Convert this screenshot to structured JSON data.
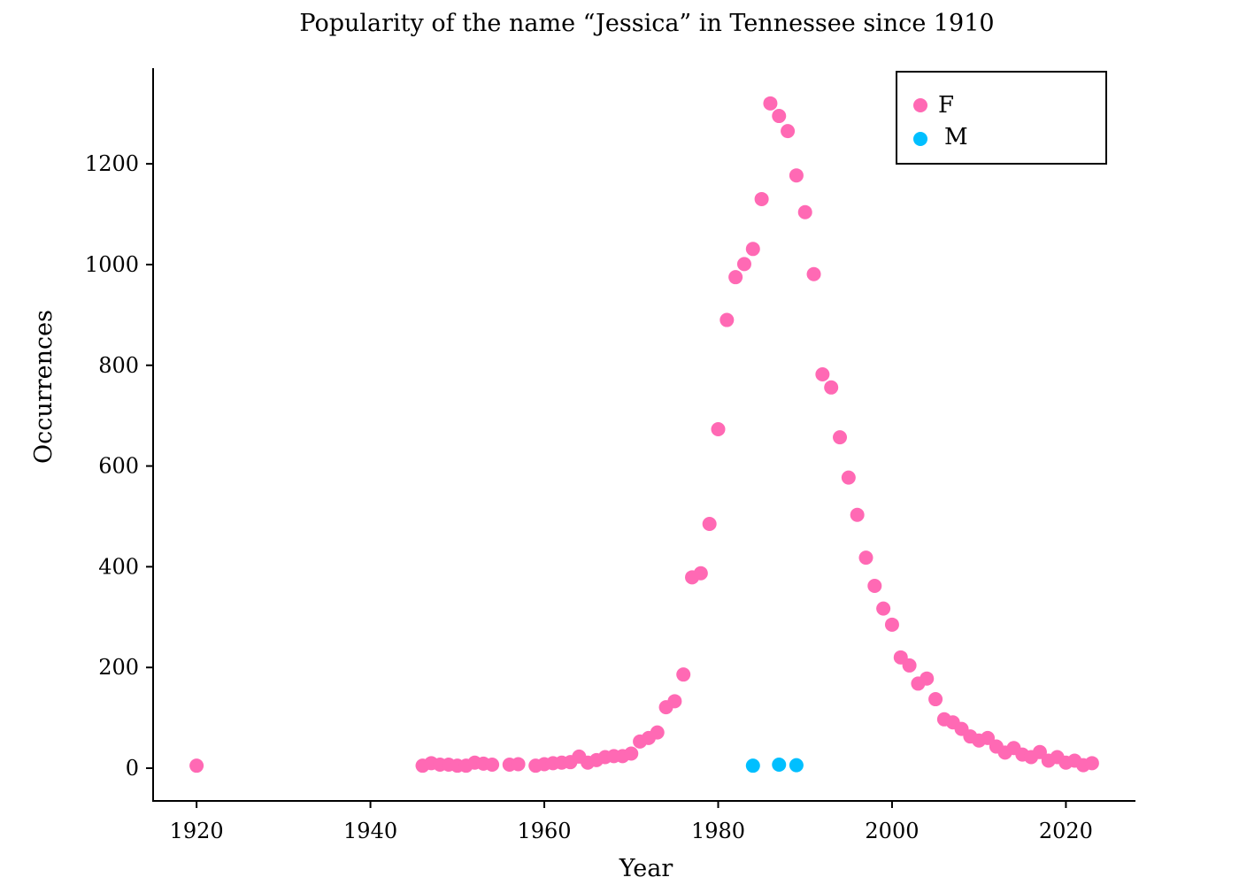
{
  "chart_data": {
    "type": "scatter",
    "title": "Popularity of the name “Jessica” in Tennessee since 1910",
    "xlabel": "Year",
    "ylabel": "Occurrences",
    "xlim": [
      1915,
      2028
    ],
    "ylim": [
      -65,
      1390
    ],
    "x_ticks": [
      1920,
      1940,
      1960,
      1980,
      2000,
      2020
    ],
    "y_ticks": [
      0,
      200,
      400,
      600,
      800,
      1000,
      1200
    ],
    "grid": false,
    "legend_position": "top-right",
    "series": [
      {
        "name": "F",
        "color": "#ff69b4",
        "points": [
          [
            1920,
            5
          ],
          [
            1946,
            5
          ],
          [
            1947,
            10
          ],
          [
            1948,
            7
          ],
          [
            1949,
            7
          ],
          [
            1950,
            5
          ],
          [
            1951,
            5
          ],
          [
            1952,
            11
          ],
          [
            1953,
            9
          ],
          [
            1954,
            7
          ],
          [
            1956,
            7
          ],
          [
            1957,
            8
          ],
          [
            1959,
            5
          ],
          [
            1960,
            8
          ],
          [
            1961,
            10
          ],
          [
            1962,
            11
          ],
          [
            1963,
            12
          ],
          [
            1964,
            23
          ],
          [
            1965,
            11
          ],
          [
            1966,
            16
          ],
          [
            1967,
            22
          ],
          [
            1968,
            24
          ],
          [
            1969,
            24
          ],
          [
            1970,
            29
          ],
          [
            1971,
            53
          ],
          [
            1972,
            60
          ],
          [
            1973,
            71
          ],
          [
            1974,
            121
          ],
          [
            1975,
            133
          ],
          [
            1976,
            186
          ],
          [
            1977,
            379
          ],
          [
            1978,
            387
          ],
          [
            1979,
            485
          ],
          [
            1980,
            673
          ],
          [
            1981,
            890
          ],
          [
            1982,
            975
          ],
          [
            1983,
            1001
          ],
          [
            1984,
            1031
          ],
          [
            1985,
            1130
          ],
          [
            1986,
            1320
          ],
          [
            1987,
            1295
          ],
          [
            1988,
            1265
          ],
          [
            1989,
            1177
          ],
          [
            1990,
            1104
          ],
          [
            1991,
            981
          ],
          [
            1992,
            782
          ],
          [
            1993,
            756
          ],
          [
            1994,
            657
          ],
          [
            1995,
            577
          ],
          [
            1996,
            503
          ],
          [
            1997,
            418
          ],
          [
            1998,
            362
          ],
          [
            1999,
            317
          ],
          [
            2000,
            285
          ],
          [
            2001,
            220
          ],
          [
            2002,
            204
          ],
          [
            2003,
            168
          ],
          [
            2004,
            178
          ],
          [
            2005,
            137
          ],
          [
            2006,
            97
          ],
          [
            2007,
            91
          ],
          [
            2008,
            78
          ],
          [
            2009,
            63
          ],
          [
            2010,
            55
          ],
          [
            2011,
            60
          ],
          [
            2012,
            43
          ],
          [
            2013,
            31
          ],
          [
            2014,
            40
          ],
          [
            2015,
            27
          ],
          [
            2016,
            22
          ],
          [
            2017,
            32
          ],
          [
            2018,
            15
          ],
          [
            2019,
            22
          ],
          [
            2020,
            11
          ],
          [
            2021,
            15
          ],
          [
            2022,
            6
          ],
          [
            2023,
            10
          ]
        ]
      },
      {
        "name": "M",
        "color": "#00bfff",
        "points": [
          [
            1984,
            5
          ],
          [
            1987,
            7
          ],
          [
            1989,
            6
          ]
        ]
      }
    ]
  }
}
